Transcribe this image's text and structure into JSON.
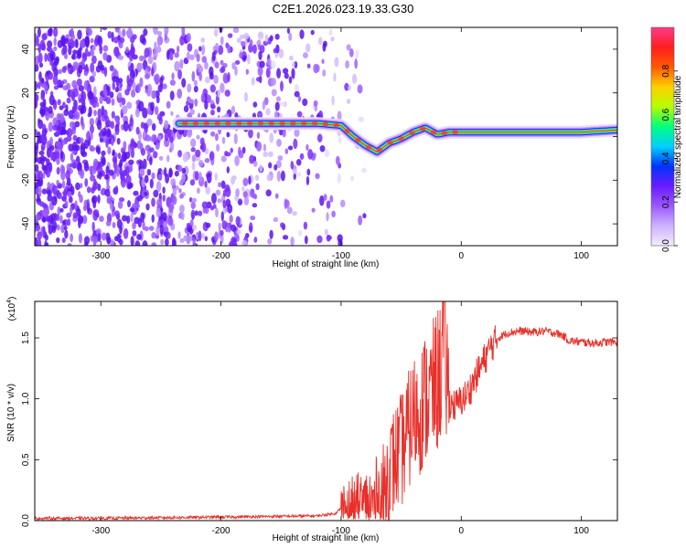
{
  "title": "C2E1.2026.023.19.33.G30",
  "chart_data": [
    {
      "type": "heatmap",
      "xlabel": "Height of straight line (km)",
      "ylabel": "Frequency (Hz)",
      "xlim": [
        -355,
        130
      ],
      "ylim": [
        -50,
        50
      ],
      "xticks": [
        -300,
        -200,
        -100,
        0,
        100
      ],
      "xtick_labels": [
        "-300",
        "-200",
        "-100",
        "0",
        "100"
      ],
      "yticks": [
        -40,
        -20,
        0,
        20,
        40
      ],
      "ytick_labels": [
        "-40",
        "-20",
        "0",
        "20",
        "40"
      ],
      "colorbar": {
        "label": "Normalized spectral amplitude",
        "range": [
          0.0,
          1.0
        ],
        "ticks": [
          0.0,
          0.2,
          0.4,
          0.6,
          0.8
        ],
        "tick_labels": [
          "0.0",
          "0.2",
          "0.4",
          "0.6",
          "0.8"
        ],
        "colors": [
          "#f4ecff",
          "#cdb3ff",
          "#9b59ff",
          "#6a1bff",
          "#0033ff",
          "#00d0ff",
          "#00ff7f",
          "#b5ff00",
          "#ffd000",
          "#ff5a00",
          "#ff1f1f",
          "#ff3a8a"
        ]
      },
      "ridge": {
        "x": [
          -235,
          -200,
          -150,
          -120,
          -100,
          -90,
          -80,
          -70,
          -60,
          -50,
          -40,
          -30,
          -20,
          -10,
          0,
          50,
          100,
          130
        ],
        "y": [
          6,
          6,
          6,
          6,
          5,
          0,
          -4,
          -7,
          -3,
          -1,
          2,
          4,
          1,
          2,
          2,
          2,
          2,
          3
        ]
      },
      "noise_region": [
        -355,
        -100
      ]
    },
    {
      "type": "line",
      "xlabel": "Height of straight line (km)",
      "ylabel": "SNR (10 * v/v)",
      "y_multiplier": "(x10",
      "y_multiplier_exp": "4",
      "xlim": [
        -355,
        130
      ],
      "ylim": [
        0.0,
        1.8
      ],
      "xticks": [
        -300,
        -200,
        -100,
        0,
        100
      ],
      "xtick_labels": [
        "-300",
        "-200",
        "-100",
        "0",
        "100"
      ],
      "yticks": [
        0.0,
        0.5,
        1.0,
        1.5
      ],
      "ytick_labels": [
        "0.0",
        "0.5",
        "1.0",
        "1.5"
      ],
      "series": [
        {
          "name": "SNR",
          "color": "#e8302a",
          "x": [
            -355,
            -300,
            -200,
            -120,
            -105,
            -100,
            -90,
            -80,
            -70,
            -65,
            -60,
            -55,
            -50,
            -45,
            -40,
            -35,
            -30,
            -25,
            -20,
            -17,
            -15,
            -12,
            -10,
            -5,
            0,
            5,
            10,
            15,
            20,
            25,
            30,
            40,
            50,
            60,
            70,
            80,
            85,
            90,
            100,
            110,
            120,
            130
          ],
          "y": [
            0.02,
            0.02,
            0.03,
            0.04,
            0.06,
            0.1,
            0.08,
            0.12,
            0.18,
            0.25,
            0.45,
            0.55,
            0.62,
            0.75,
            0.9,
            0.95,
            1.05,
            1.1,
            1.2,
            1.3,
            1.6,
            1.25,
            1.0,
            0.95,
            1.0,
            1.05,
            1.15,
            1.25,
            1.35,
            1.45,
            1.5,
            1.55,
            1.56,
            1.55,
            1.56,
            1.54,
            1.52,
            1.48,
            1.47,
            1.46,
            1.47,
            1.47
          ]
        }
      ]
    }
  ]
}
